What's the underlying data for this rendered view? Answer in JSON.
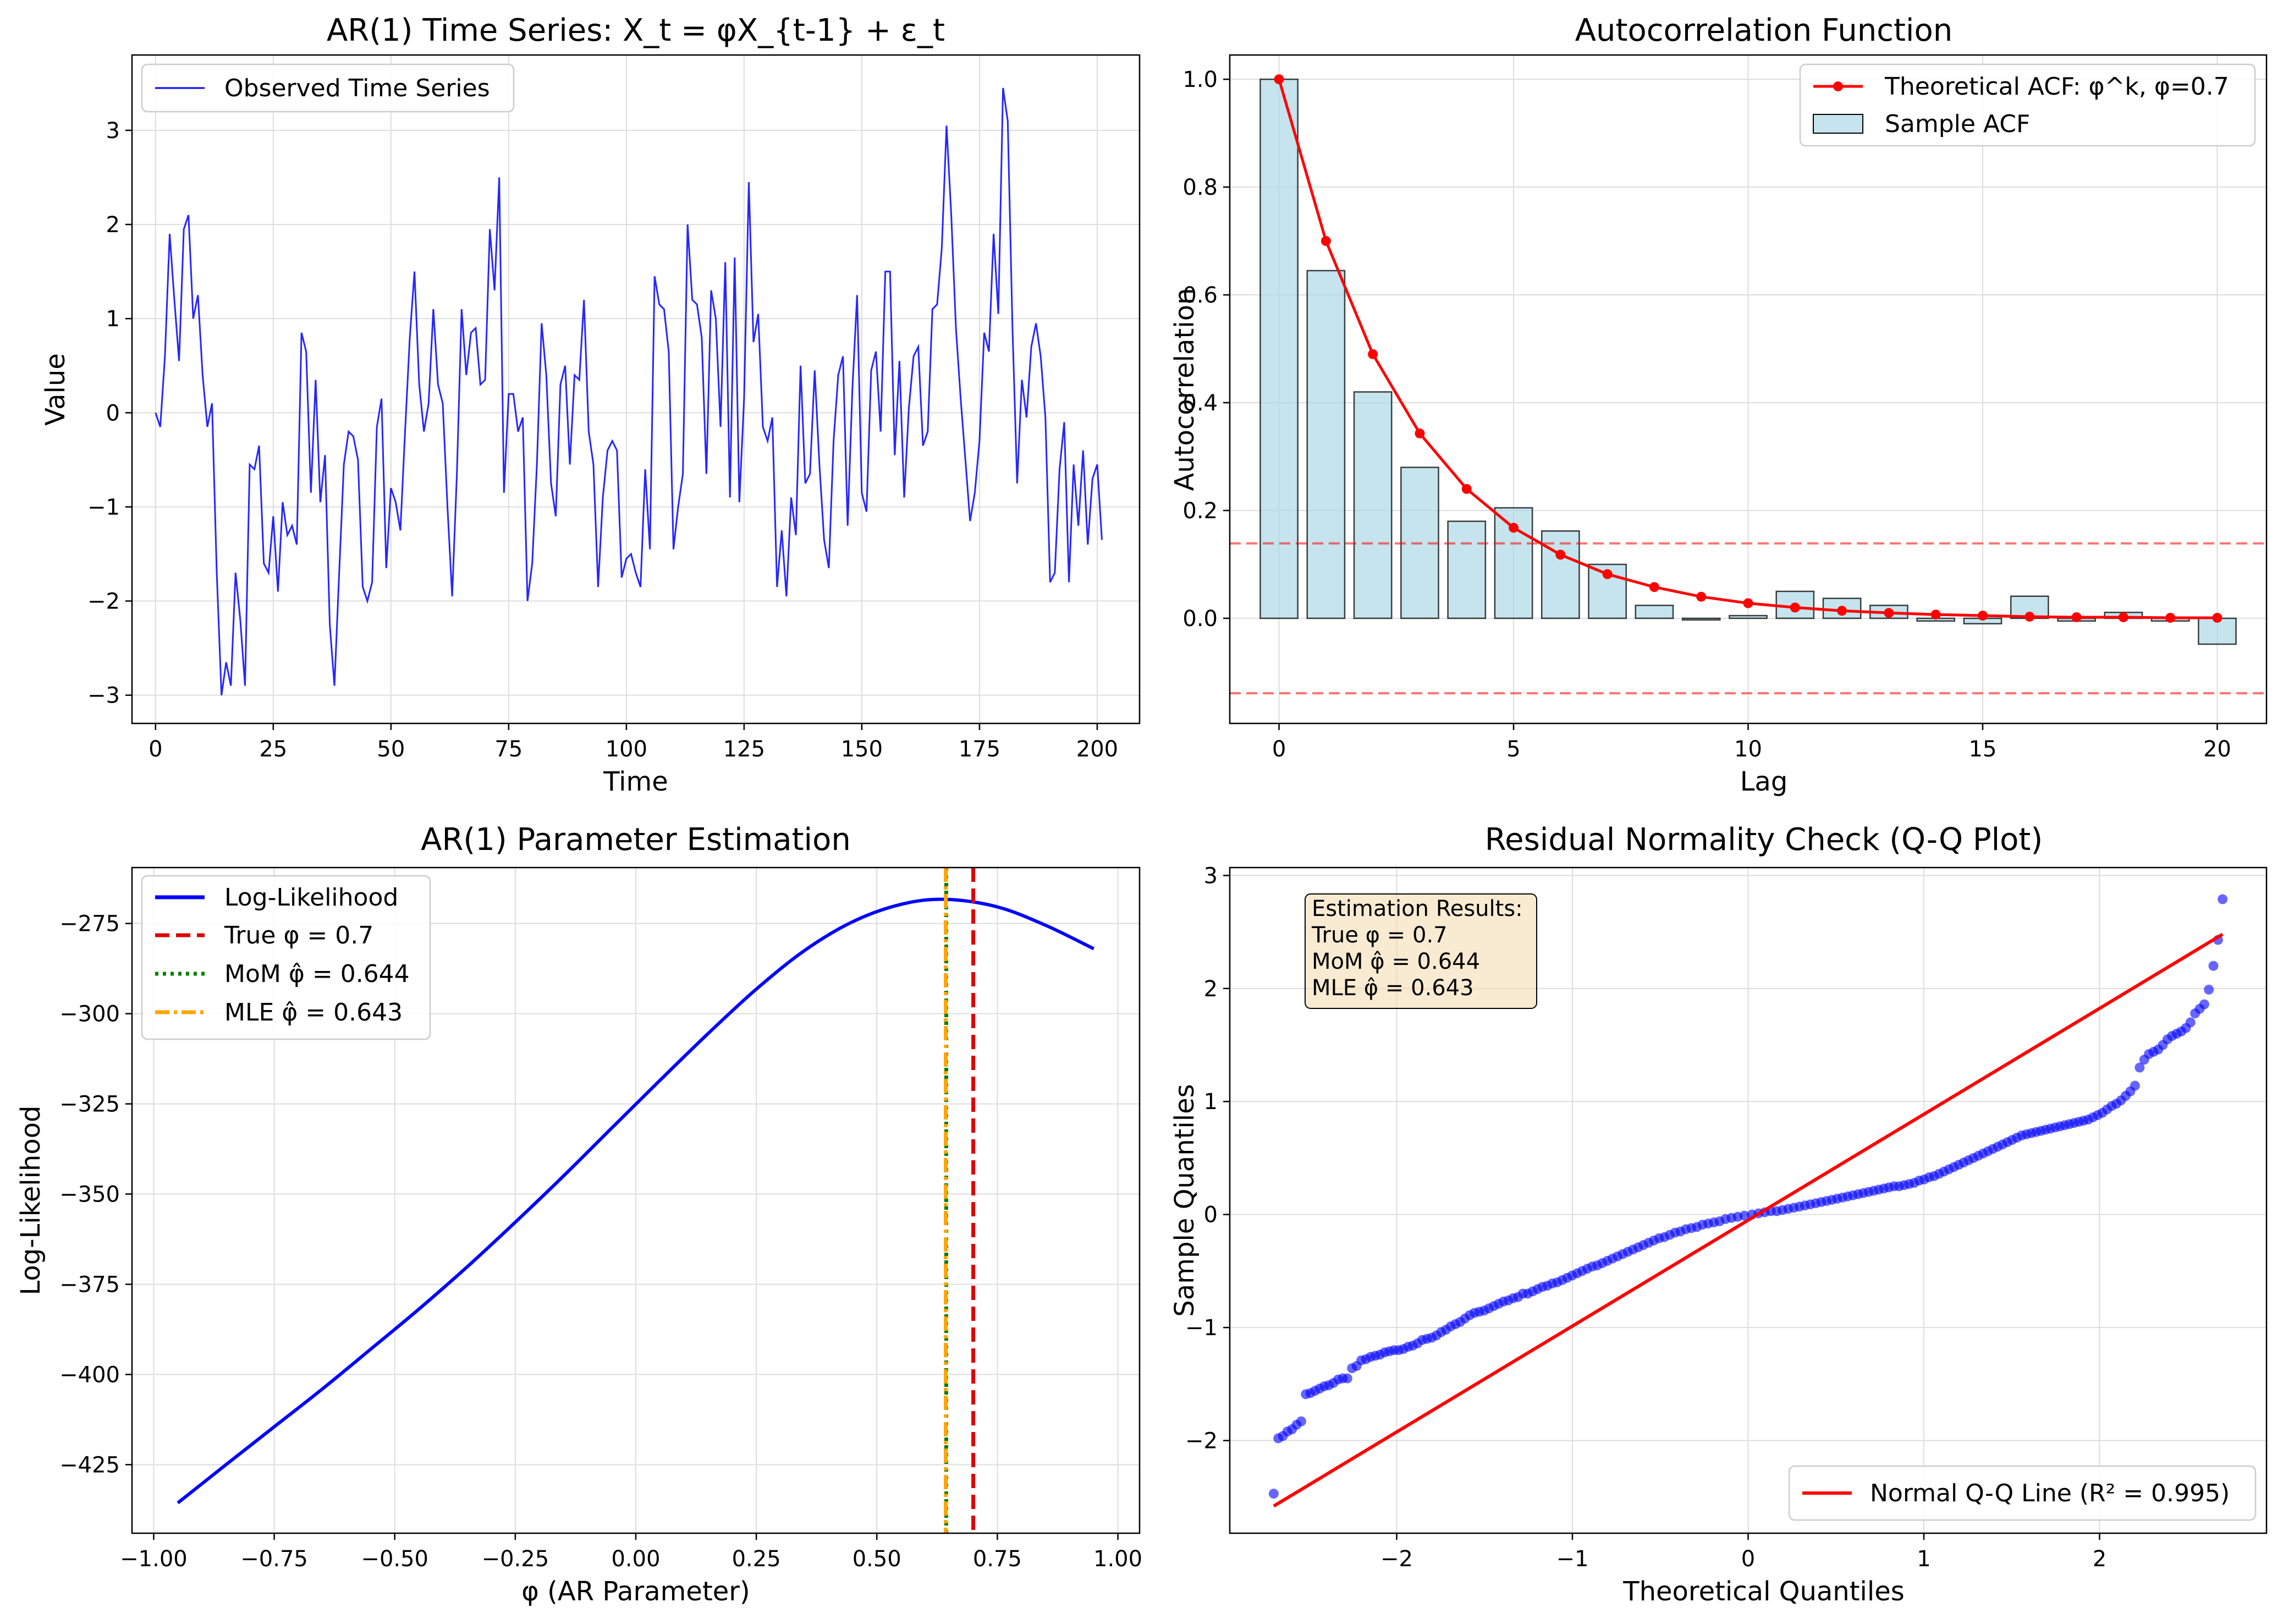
{
  "colors": {
    "series_blue": "#0000ff",
    "theory_red": "#ff0000",
    "acf_fill": "#add8e6",
    "true_red": "#dd0000",
    "mom_green": "#008000",
    "mle_orange": "#ffa500",
    "box_fill": "#f5deb3",
    "grid": "#dddddd"
  },
  "chart_data": [
    {
      "id": "ts",
      "type": "line",
      "title": "AR(1) Time Series: X_t = φX_{t-1} + ε_t",
      "xlabel": "Time",
      "ylabel": "Value",
      "xlim": [
        -5,
        209
      ],
      "ylim": [
        -3.3,
        3.8
      ],
      "xticks": [
        0,
        25,
        50,
        75,
        100,
        125,
        150,
        175,
        200
      ],
      "yticks": [
        -3,
        -2,
        -1,
        0,
        1,
        2,
        3
      ],
      "grid": true,
      "legend": "upper left",
      "series": [
        {
          "name": "Observed Time Series",
          "x_start": 0,
          "x_step": 1,
          "values": [
            0,
            -0.15,
            0.6,
            1.9,
            1.2,
            0.55,
            1.95,
            2.1,
            1.0,
            1.25,
            0.4,
            -0.15,
            0.1,
            -1.7,
            -3.0,
            -2.65,
            -2.9,
            -1.7,
            -2.2,
            -2.9,
            -0.55,
            -0.6,
            -0.35,
            -1.6,
            -1.7,
            -1.1,
            -1.9,
            -0.95,
            -1.3,
            -1.2,
            -1.4,
            0.85,
            0.65,
            -0.85,
            0.35,
            -0.95,
            -0.45,
            -2.25,
            -2.9,
            -1.7,
            -0.55,
            -0.2,
            -0.25,
            -0.5,
            -1.85,
            -2.0,
            -1.8,
            -0.15,
            0.15,
            -1.65,
            -0.8,
            -0.95,
            -1.25,
            -0.2,
            0.8,
            1.5,
            0.3,
            -0.2,
            0.1,
            1.1,
            0.3,
            0.1,
            -1.0,
            -1.95,
            -0.65,
            1.1,
            0.4,
            0.85,
            0.9,
            0.3,
            0.35,
            1.95,
            1.3,
            2.5,
            -0.85,
            0.2,
            0.2,
            -0.2,
            -0.05,
            -2.0,
            -1.6,
            -0.55,
            0.95,
            0.4,
            -0.75,
            -1.1,
            0.3,
            0.5,
            -0.55,
            0.4,
            0.35,
            1.2,
            -0.2,
            -0.55,
            -1.85,
            -0.9,
            -0.4,
            -0.3,
            -0.4,
            -1.75,
            -1.55,
            -1.5,
            -1.7,
            -1.85,
            -0.6,
            -1.45,
            1.45,
            1.15,
            1.1,
            0.65,
            -1.45,
            -1.0,
            -0.65,
            2.0,
            1.2,
            1.15,
            0.8,
            -0.65,
            1.3,
            1.0,
            -0.15,
            1.6,
            -0.9,
            1.65,
            -0.95,
            0.15,
            2.45,
            0.75,
            1.05,
            -0.15,
            -0.3,
            -0.05,
            -1.85,
            -1.25,
            -1.95,
            -0.9,
            -1.3,
            0.5,
            -0.75,
            -0.65,
            0.45,
            -0.55,
            -1.35,
            -1.65,
            -0.3,
            0.4,
            0.6,
            -1.2,
            0.25,
            1.25,
            -0.85,
            -1.05,
            0.45,
            0.65,
            -0.2,
            1.5,
            1.5,
            -0.45,
            0.55,
            -0.9,
            0.05,
            0.6,
            0.7,
            -0.35,
            -0.2,
            1.1,
            1.15,
            1.75,
            3.05,
            2.1,
            0.9,
            0.15,
            -0.5,
            -1.15,
            -0.85,
            -0.3,
            0.85,
            0.65,
            1.9,
            1.05,
            3.45,
            3.1,
            0.9,
            -0.75,
            0.35,
            -0.05,
            0.7,
            0.95,
            0.6,
            -0.05,
            -1.8,
            -1.7,
            -0.6,
            -0.1,
            -1.8,
            -0.55,
            -1.2,
            -0.4,
            -1.4,
            -0.7,
            -0.55,
            -1.35
          ]
        }
      ]
    },
    {
      "id": "acf",
      "type": "bar",
      "title": "Autocorrelation Function",
      "xlabel": "Lag",
      "ylabel": "Autocorrelation",
      "xlim": [
        -1.05,
        21.05
      ],
      "ylim": [
        -0.195,
        1.045
      ],
      "xticks": [
        0,
        5,
        10,
        15,
        20
      ],
      "yticks": [
        0.0,
        0.2,
        0.4,
        0.6,
        0.8,
        1.0
      ],
      "grid": true,
      "legend": "upper right",
      "confidence_bands": [
        0.139,
        -0.139
      ],
      "series": [
        {
          "name": "Theoretical ACF: φ^k, φ=0.7",
          "kind": "line",
          "x": [
            0,
            1,
            2,
            3,
            4,
            5,
            6,
            7,
            8,
            9,
            10,
            11,
            12,
            13,
            14,
            15,
            16,
            17,
            18,
            19,
            20
          ],
          "values": [
            1.0,
            0.7,
            0.49,
            0.343,
            0.24,
            0.168,
            0.118,
            0.082,
            0.058,
            0.04,
            0.028,
            0.02,
            0.014,
            0.01,
            0.007,
            0.005,
            0.003,
            0.002,
            0.002,
            0.001,
            0.001
          ]
        },
        {
          "name": "Sample ACF",
          "kind": "bar",
          "x": [
            0,
            1,
            2,
            3,
            4,
            5,
            6,
            7,
            8,
            9,
            10,
            11,
            12,
            13,
            14,
            15,
            16,
            17,
            18,
            19,
            20
          ],
          "values": [
            1.0,
            0.645,
            0.42,
            0.28,
            0.18,
            0.205,
            0.162,
            0.1,
            0.024,
            -0.003,
            0.005,
            0.05,
            0.037,
            0.024,
            -0.005,
            -0.01,
            0.041,
            -0.005,
            0.011,
            -0.005,
            -0.048
          ]
        }
      ]
    },
    {
      "id": "ll",
      "type": "line",
      "title": "AR(1) Parameter Estimation",
      "xlabel": "φ (AR Parameter)",
      "ylabel": "Log-Likelihood",
      "xlim": [
        -1.045,
        1.045
      ],
      "ylim": [
        -444,
        -259.5
      ],
      "xticks": [
        -1.0,
        -0.75,
        -0.5,
        -0.25,
        0.0,
        0.25,
        0.5,
        0.75,
        1.0
      ],
      "xtick_labels": [
        "−1.00",
        "−0.75",
        "−0.50",
        "−0.25",
        "0.00",
        "0.25",
        "0.50",
        "0.75",
        "1.00"
      ],
      "yticks": [
        -425,
        -400,
        -375,
        -350,
        -325,
        -300,
        -275
      ],
      "ytick_labels": [
        "−425",
        "−400",
        "−375",
        "−350",
        "−325",
        "−300",
        "−275"
      ],
      "grid": true,
      "legend": "upper left",
      "series": [
        {
          "name": "Log-Likelihood",
          "x": [
            -0.95,
            -0.85,
            -0.75,
            -0.65,
            -0.55,
            -0.45,
            -0.35,
            -0.25,
            -0.15,
            -0.05,
            0.05,
            0.15,
            0.25,
            0.35,
            0.45,
            0.55,
            0.643,
            0.75,
            0.85,
            0.95
          ],
          "values": [
            -435.6,
            -425.0,
            -414.5,
            -404.0,
            -393.0,
            -381.9,
            -370.2,
            -357.8,
            -345.0,
            -331.7,
            -318.5,
            -305.5,
            -293.2,
            -282.5,
            -274.5,
            -269.7,
            -268.3,
            -270.4,
            -275.5,
            -282.0
          ]
        }
      ],
      "vlines": [
        {
          "name": "True φ = 0.7",
          "x": 0.7,
          "style": "dashed"
        },
        {
          "name": "MoM φ̂ = 0.644",
          "x": 0.644,
          "style": "dotted"
        },
        {
          "name": "MLE φ̂ = 0.643",
          "x": 0.643,
          "style": "dashdot"
        }
      ]
    },
    {
      "id": "qq",
      "type": "scatter",
      "title": "Residual Normality Check (Q-Q Plot)",
      "xlabel": "Theoretical Quantiles",
      "ylabel": "Sample Quantiles",
      "xlim": [
        -2.95,
        2.95
      ],
      "ylim": [
        -2.82,
        3.07
      ],
      "xticks": [
        -2,
        -1,
        0,
        1,
        2
      ],
      "xtick_labels": [
        "−2",
        "−1",
        "0",
        "1",
        "2"
      ],
      "yticks": [
        -2,
        -1,
        0,
        1,
        2,
        3
      ],
      "ytick_labels": [
        "−2",
        "−1",
        "0",
        "1",
        "2",
        "3"
      ],
      "grid": true,
      "legend": "lower right",
      "points_y": [
        -2.47,
        -1.98,
        -1.96,
        -1.92,
        -1.9,
        -1.86,
        -1.83,
        -1.59,
        -1.58,
        -1.56,
        -1.54,
        -1.52,
        -1.51,
        -1.49,
        -1.46,
        -1.45,
        -1.45,
        -1.36,
        -1.34,
        -1.29,
        -1.28,
        -1.26,
        -1.25,
        -1.24,
        -1.22,
        -1.21,
        -1.2,
        -1.2,
        -1.19,
        -1.17,
        -1.16,
        -1.14,
        -1.11,
        -1.1,
        -1.09,
        -1.07,
        -1.04,
        -1.02,
        -0.99,
        -0.97,
        -0.95,
        -0.92,
        -0.89,
        -0.87,
        -0.86,
        -0.85,
        -0.83,
        -0.81,
        -0.79,
        -0.77,
        -0.76,
        -0.74,
        -0.73,
        -0.7,
        -0.7,
        -0.68,
        -0.66,
        -0.64,
        -0.63,
        -0.61,
        -0.6,
        -0.58,
        -0.56,
        -0.54,
        -0.52,
        -0.5,
        -0.48,
        -0.46,
        -0.45,
        -0.43,
        -0.41,
        -0.39,
        -0.37,
        -0.35,
        -0.33,
        -0.31,
        -0.29,
        -0.27,
        -0.25,
        -0.23,
        -0.21,
        -0.2,
        -0.18,
        -0.16,
        -0.15,
        -0.13,
        -0.12,
        -0.11,
        -0.09,
        -0.08,
        -0.07,
        -0.06,
        -0.04,
        -0.03,
        -0.02,
        -0.01,
        0.0,
        0.01,
        0.02,
        0.03,
        0.03,
        0.04,
        0.05,
        0.06,
        0.07,
        0.08,
        0.09,
        0.1,
        0.11,
        0.12,
        0.13,
        0.14,
        0.15,
        0.16,
        0.17,
        0.18,
        0.19,
        0.2,
        0.21,
        0.22,
        0.23,
        0.24,
        0.25,
        0.25,
        0.26,
        0.27,
        0.28,
        0.3,
        0.31,
        0.33,
        0.34,
        0.36,
        0.38,
        0.4,
        0.42,
        0.44,
        0.46,
        0.48,
        0.5,
        0.52,
        0.54,
        0.56,
        0.58,
        0.6,
        0.62,
        0.64,
        0.66,
        0.68,
        0.7,
        0.71,
        0.72,
        0.73,
        0.74,
        0.75,
        0.76,
        0.77,
        0.78,
        0.79,
        0.8,
        0.81,
        0.82,
        0.83,
        0.84,
        0.86,
        0.88,
        0.9,
        0.93,
        0.96,
        0.98,
        1.01,
        1.05,
        1.09,
        1.14,
        1.3,
        1.37,
        1.42,
        1.44,
        1.46,
        1.5,
        1.55,
        1.58,
        1.6,
        1.62,
        1.65,
        1.7,
        1.78,
        1.82,
        1.86,
        1.99,
        2.2,
        2.43,
        2.79
      ],
      "points_x_from": -2.7,
      "points_x_to": 2.7,
      "series": [
        {
          "name": "Normal Q-Q Line (R² = 0.995)",
          "x": [
            -2.7,
            2.7
          ],
          "values": [
            -2.58,
            2.48
          ]
        }
      ],
      "annotation": [
        "Estimation Results:",
        "True φ = 0.7",
        "MoM φ̂ = 0.644",
        "MLE φ̂ = 0.643"
      ]
    }
  ]
}
